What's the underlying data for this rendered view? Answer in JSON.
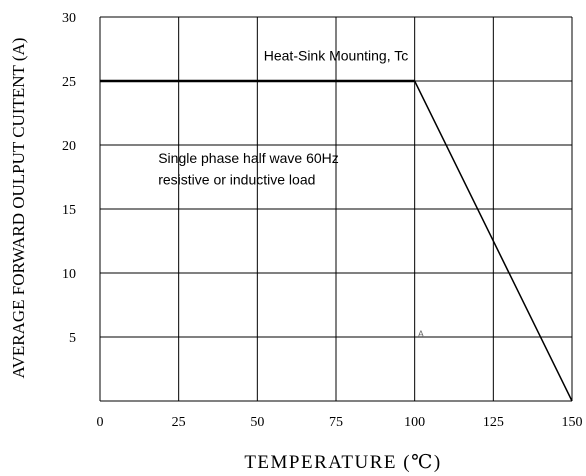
{
  "chart_data": {
    "type": "line",
    "title": "",
    "xlabel": "TEMPERATURE (℃)",
    "ylabel": "AVERAGE FORWARD OULPUT CUITENT (A)",
    "xlim": [
      0,
      150
    ],
    "ylim": [
      0,
      30
    ],
    "x_ticks": [
      "0",
      "25",
      "50",
      "75",
      "100",
      "125",
      "150"
    ],
    "y_ticks": [
      "5",
      "10",
      "15",
      "20",
      "25",
      "30"
    ],
    "grid": true,
    "series": [
      {
        "x": [
          0,
          100,
          150
        ],
        "y": [
          25,
          25,
          0
        ]
      }
    ],
    "annotations": [
      {
        "text": "Heat-Sink Mounting, Tc",
        "x": 75,
        "y": 26.6
      },
      {
        "text": "Single phase half wave 60Hz",
        "x": 18.5,
        "y": 18.6
      },
      {
        "text": "resistive or inductive load",
        "x": 18.5,
        "y": 16.9
      },
      {
        "text": "A",
        "x": 101,
        "y": 5
      }
    ],
    "line_color": "#000000"
  }
}
